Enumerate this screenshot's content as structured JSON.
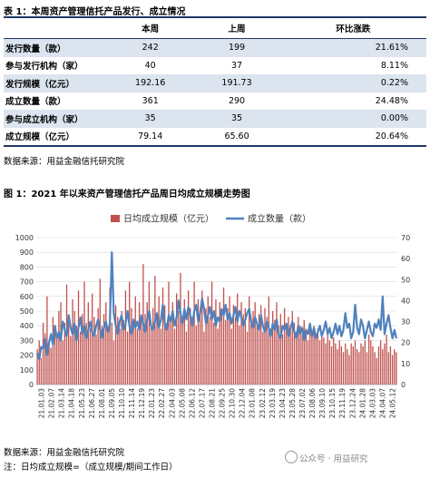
{
  "table1": {
    "title": "表 1：本周资产管理信托产品发行、成立情况",
    "headers": [
      "",
      "本周",
      "上周",
      "环比涨跌"
    ],
    "rows": [
      {
        "label": "发行数量（款）",
        "this_week": "242",
        "last_week": "199",
        "change": "21.61%"
      },
      {
        "label": "参与发行机构（家）",
        "this_week": "40",
        "last_week": "37",
        "change": "8.11%"
      },
      {
        "label": "发行规模（亿元）",
        "this_week": "192.16",
        "last_week": "191.73",
        "change": "0.22%"
      },
      {
        "label": "成立数量（款）",
        "this_week": "361",
        "last_week": "290",
        "change": "24.48%"
      },
      {
        "label": "参与成立机构（家）",
        "this_week": "35",
        "last_week": "35",
        "change": "0.00%"
      },
      {
        "label": "成立规模（亿元）",
        "this_week": "79.14",
        "last_week": "65.60",
        "change": "20.64%"
      }
    ],
    "source": "数据来源：用益金融信托研究院"
  },
  "chart_title": "图 1：2021 年以来资产管理信托产品周日均成立规模走势图",
  "chart_source": "数据来源：用益金融信托研究院",
  "note": "注：日均成立规模=（成立规模/期间工作日）",
  "watermark": "公众号 · 用益研究",
  "colors": {
    "bar": "#c0504d",
    "line": "#4f81bd",
    "header_rule": "#1f3864",
    "row_band": "#dbe4ef"
  },
  "chart_data": {
    "type": "bar+line",
    "legend": [
      "日均成立规模（亿元）",
      "成立数量（款）"
    ],
    "legend_position": "top-center",
    "y_left": {
      "min": 0,
      "max": 1000,
      "ticks": [
        0,
        100,
        200,
        300,
        400,
        500,
        600,
        700,
        800,
        900,
        1000
      ]
    },
    "y_right": {
      "min": 0,
      "max": 70,
      "ticks": [
        0,
        10,
        20,
        30,
        40,
        50,
        60,
        70
      ]
    },
    "x_tick_labels": [
      "21.01.03",
      "21.02.07",
      "21.03.14",
      "21.04.18",
      "21.05.23",
      "21.06.27",
      "21.08.01",
      "21.09.05",
      "21.10.10",
      "21.11.14",
      "21.12.19",
      "22.01.23",
      "22.02.27",
      "22.04.03",
      "22.05.08",
      "22.06.12",
      "22.07.17",
      "22.08.21",
      "22.09.25",
      "22.10.30",
      "22.12.04",
      "23.01.08",
      "23.02.12",
      "23.03.19",
      "23.04.23",
      "23.05.28",
      "23.07.02",
      "23.08.06",
      "23.09.10",
      "23.10.15",
      "23.11.19",
      "23.12.24",
      "24.01.28",
      "24.03.03",
      "24.04.07",
      "24.05.12"
    ],
    "gridlines": true,
    "series": [
      {
        "name": "日均成立规模（亿元）",
        "axis": "left",
        "kind": "bar",
        "values": [
          240,
          300,
          180,
          420,
          350,
          600,
          280,
          250,
          460,
          380,
          320,
          500,
          560,
          300,
          420,
          680,
          450,
          330,
          580,
          500,
          400,
          640,
          360,
          480,
          700,
          420,
          560,
          380,
          620,
          460,
          340,
          520,
          720,
          400,
          480,
          560,
          380,
          660,
          420,
          300,
          540,
          460,
          380,
          500,
          440,
          640,
          360,
          700,
          520,
          430,
          600,
          380,
          560,
          460,
          820,
          480,
          560,
          700,
          420,
          520,
          740,
          480,
          600,
          380,
          660,
          540,
          420,
          700,
          460,
          560,
          380,
          620,
          500,
          760,
          440,
          580,
          360,
          640,
          520,
          460,
          700,
          400,
          580,
          480,
          640,
          360,
          520,
          600,
          460,
          700,
          420,
          580,
          380,
          560,
          500,
          660,
          440,
          520,
          600,
          380,
          540,
          460,
          620,
          400,
          560,
          480,
          520,
          360,
          600,
          440,
          500,
          560,
          400,
          480,
          540,
          360,
          520,
          460,
          600,
          380,
          500,
          440,
          560,
          400,
          480,
          340,
          520,
          420,
          460,
          380,
          500,
          420,
          360,
          460,
          400,
          340,
          440,
          380,
          300,
          420,
          360,
          400,
          320,
          380,
          300,
          360,
          320,
          280,
          340,
          300,
          260,
          320,
          280,
          240,
          300,
          260,
          220,
          280,
          240,
          200,
          280,
          260,
          300,
          240,
          220,
          280,
          260,
          300,
          220,
          340,
          300,
          260,
          220,
          180,
          260,
          300,
          240,
          280,
          340,
          220,
          260,
          200,
          240,
          220
        ]
      },
      {
        "name": "成立数量（款）",
        "axis": "right",
        "kind": "line",
        "values": [
          15,
          12,
          18,
          17,
          22,
          14,
          20,
          24,
          19,
          28,
          22,
          25,
          21,
          30,
          26,
          23,
          33,
          27,
          24,
          29,
          21,
          27,
          32,
          24,
          28,
          22,
          26,
          30,
          25,
          23,
          28,
          31,
          26,
          22,
          27,
          30,
          25,
          29,
          63,
          34,
          28,
          24,
          30,
          33,
          26,
          29,
          35,
          28,
          24,
          31,
          27,
          30,
          26,
          33,
          29,
          25,
          31,
          35,
          28,
          26,
          30,
          34,
          27,
          31,
          38,
          29,
          26,
          33,
          30,
          35,
          28,
          32,
          40,
          34,
          29,
          36,
          31,
          37,
          33,
          28,
          35,
          38,
          30,
          34,
          41,
          36,
          29,
          33,
          37,
          31,
          35,
          28,
          32,
          30,
          36,
          33,
          38,
          31,
          34,
          29,
          33,
          37,
          30,
          35,
          32,
          28,
          31,
          34,
          36,
          30,
          27,
          32,
          29,
          26,
          33,
          28,
          25,
          30,
          27,
          23,
          29,
          26,
          31,
          24,
          22,
          28,
          26,
          29,
          23,
          27,
          30,
          25,
          22,
          28,
          24,
          27,
          21,
          26,
          24,
          29,
          23,
          27,
          22,
          25,
          28,
          23,
          26,
          30,
          24,
          27,
          22,
          25,
          29,
          24,
          28,
          23,
          26,
          34,
          27,
          29,
          22,
          25,
          38,
          27,
          24,
          31,
          28,
          22,
          26,
          30,
          25,
          23,
          29,
          27,
          31,
          26,
          42,
          24,
          29,
          33,
          27,
          22,
          26,
          22
        ]
      }
    ]
  }
}
